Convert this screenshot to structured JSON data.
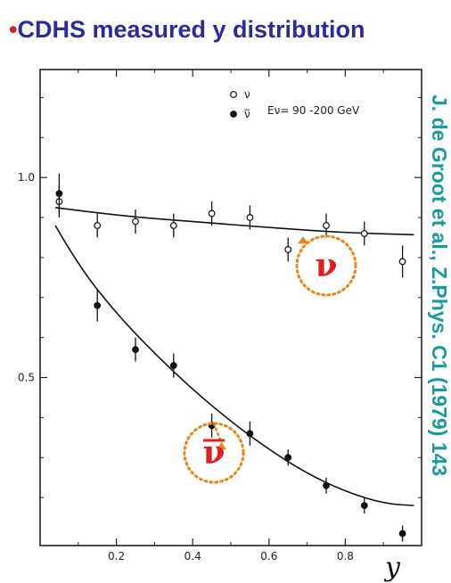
{
  "title_bullet": "•",
  "title_text": "CDHS measured y distribution",
  "side_reference": "J. de Groot et al., Z.Phys. C1 (1979) 143",
  "colors": {
    "title": "#2b2b9a",
    "bullet": "#d42020",
    "reference": "#1a9b9b",
    "highlight_circle": "#e8861a",
    "highlight_text": "#e02020"
  },
  "chart_data": {
    "type": "scatter",
    "xlabel": "y",
    "ylabel": "",
    "xlim": [
      0,
      1.0
    ],
    "ylim": [
      0.08,
      1.27
    ],
    "x_ticks": [
      0.2,
      0.4,
      0.6,
      0.8
    ],
    "x_tick_labels": [
      "0.2",
      "0.4",
      "0.6",
      "0.8"
    ],
    "y_ticks": [
      0.5,
      1.0
    ],
    "y_tick_labels": [
      "0.5",
      "1.0"
    ],
    "energy_label": "Eν= 90 -200 GeV",
    "legend": [
      {
        "symbol": "open-circle",
        "label": "ν"
      },
      {
        "symbol": "filled-circle",
        "label": "ν̅"
      }
    ],
    "series": [
      {
        "name": "ν",
        "marker": "open-circle",
        "x": [
          0.05,
          0.15,
          0.25,
          0.35,
          0.45,
          0.55,
          0.65,
          0.75,
          0.85,
          0.95
        ],
        "y": [
          0.94,
          0.88,
          0.89,
          0.88,
          0.91,
          0.9,
          0.82,
          0.88,
          0.86,
          0.79
        ],
        "err": [
          0.04,
          0.03,
          0.03,
          0.03,
          0.03,
          0.03,
          0.03,
          0.03,
          0.03,
          0.04
        ],
        "fit_x": [
          0.04,
          0.2,
          0.4,
          0.6,
          0.8,
          0.98
        ],
        "fit_y": [
          0.925,
          0.905,
          0.89,
          0.875,
          0.862,
          0.857
        ]
      },
      {
        "name": "ν̅",
        "marker": "filled-circle",
        "x": [
          0.05,
          0.15,
          0.25,
          0.35,
          0.45,
          0.55,
          0.65,
          0.75,
          0.85,
          0.95
        ],
        "y": [
          0.96,
          0.68,
          0.57,
          0.53,
          0.38,
          0.36,
          0.3,
          0.23,
          0.18,
          0.11
        ],
        "err": [
          0.05,
          0.04,
          0.03,
          0.03,
          0.03,
          0.03,
          0.02,
          0.02,
          0.02,
          0.02
        ],
        "fit_x": [
          0.04,
          0.1,
          0.2,
          0.3,
          0.4,
          0.5,
          0.6,
          0.7,
          0.8,
          0.9,
          0.98
        ],
        "fit_y": [
          0.88,
          0.78,
          0.66,
          0.56,
          0.47,
          0.39,
          0.32,
          0.26,
          0.215,
          0.185,
          0.18
        ]
      }
    ],
    "annotations": [
      {
        "label": "ν",
        "target_series": "ν",
        "target_x": 0.68,
        "target_y": 0.855
      },
      {
        "label": "ν",
        "overline": true,
        "target_series": "ν̅",
        "target_x": 0.47,
        "target_y": 0.34
      }
    ]
  }
}
